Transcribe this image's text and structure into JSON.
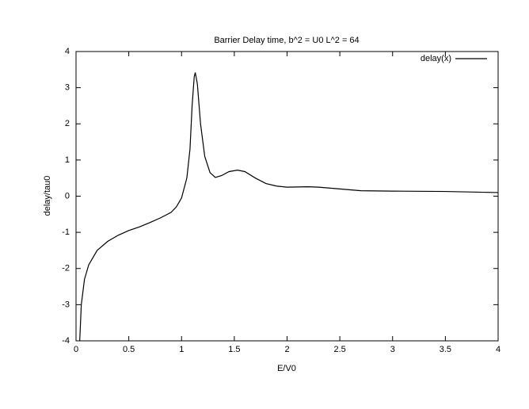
{
  "chart_data": {
    "type": "line",
    "title": "Barrier Delay time, b^2 = U0 L^2 = 64",
    "x_label": "E/V0",
    "y_label": "delay/tau0",
    "x": [
      0.035,
      0.05,
      0.08,
      0.12,
      0.2,
      0.3,
      0.4,
      0.5,
      0.6,
      0.7,
      0.8,
      0.9,
      0.95,
      1.0,
      1.05,
      1.08,
      1.1,
      1.12,
      1.13,
      1.15,
      1.18,
      1.22,
      1.27,
      1.32,
      1.38,
      1.45,
      1.53,
      1.6,
      1.7,
      1.8,
      1.9,
      2.0,
      2.2,
      2.3,
      2.5,
      2.7,
      3.0,
      3.5,
      4.0
    ],
    "series": [
      {
        "name": "delay(x)",
        "color": "#000000",
        "values": [
          -4,
          -3.0,
          -2.3,
          -1.9,
          -1.5,
          -1.25,
          -1.08,
          -0.95,
          -0.85,
          -0.73,
          -0.6,
          -0.45,
          -0.3,
          -0.05,
          0.5,
          1.3,
          2.5,
          3.3,
          3.42,
          3.1,
          2.0,
          1.1,
          0.65,
          0.52,
          0.57,
          0.68,
          0.72,
          0.68,
          0.5,
          0.35,
          0.28,
          0.25,
          0.26,
          0.25,
          0.2,
          0.15,
          0.14,
          0.13,
          0.1
        ]
      }
    ],
    "xlim": [
      0,
      4
    ],
    "ylim": [
      -4,
      4
    ],
    "xticks": [
      0,
      0.5,
      1,
      1.5,
      2,
      2.5,
      3,
      3.5,
      4
    ],
    "yticks": [
      -4,
      -3,
      -2,
      -1,
      0,
      1,
      2,
      3,
      4
    ],
    "grid": false,
    "legend": "top-right"
  }
}
